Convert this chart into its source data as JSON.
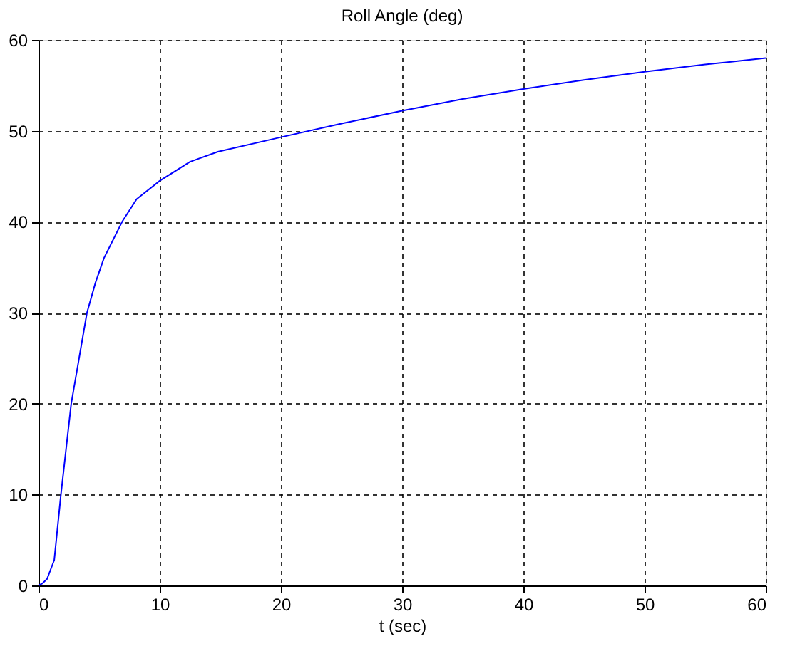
{
  "chart_data": {
    "type": "line",
    "title": "Roll Angle (deg)",
    "xlabel": "t (sec)",
    "x": [
      0,
      0.3,
      0.7,
      1.3,
      1.85,
      2.7,
      4.0,
      4.7,
      5.4,
      6.9,
      8.1,
      10,
      12.5,
      14.8,
      20,
      25,
      30,
      35,
      40,
      45,
      50,
      55,
      60
    ],
    "series": [
      {
        "color": "#0000ff",
        "values": [
          0,
          0.2,
          0.7,
          2.8,
          10,
          20,
          30,
          33.3,
          36,
          40,
          42.5,
          44.5,
          46.6,
          47.7,
          49.3,
          50.8,
          52.2,
          53.5,
          54.6,
          55.6,
          56.5,
          57.3,
          58.0
        ]
      }
    ],
    "xlim": [
      0,
      60
    ],
    "xticks": [
      0,
      10,
      20,
      30,
      40,
      50,
      60
    ],
    "ylim": [
      0,
      60
    ],
    "yticks": [
      0,
      10,
      20,
      30,
      40,
      50,
      60
    ],
    "grid": true,
    "line_style": "solid",
    "marker": "none"
  }
}
